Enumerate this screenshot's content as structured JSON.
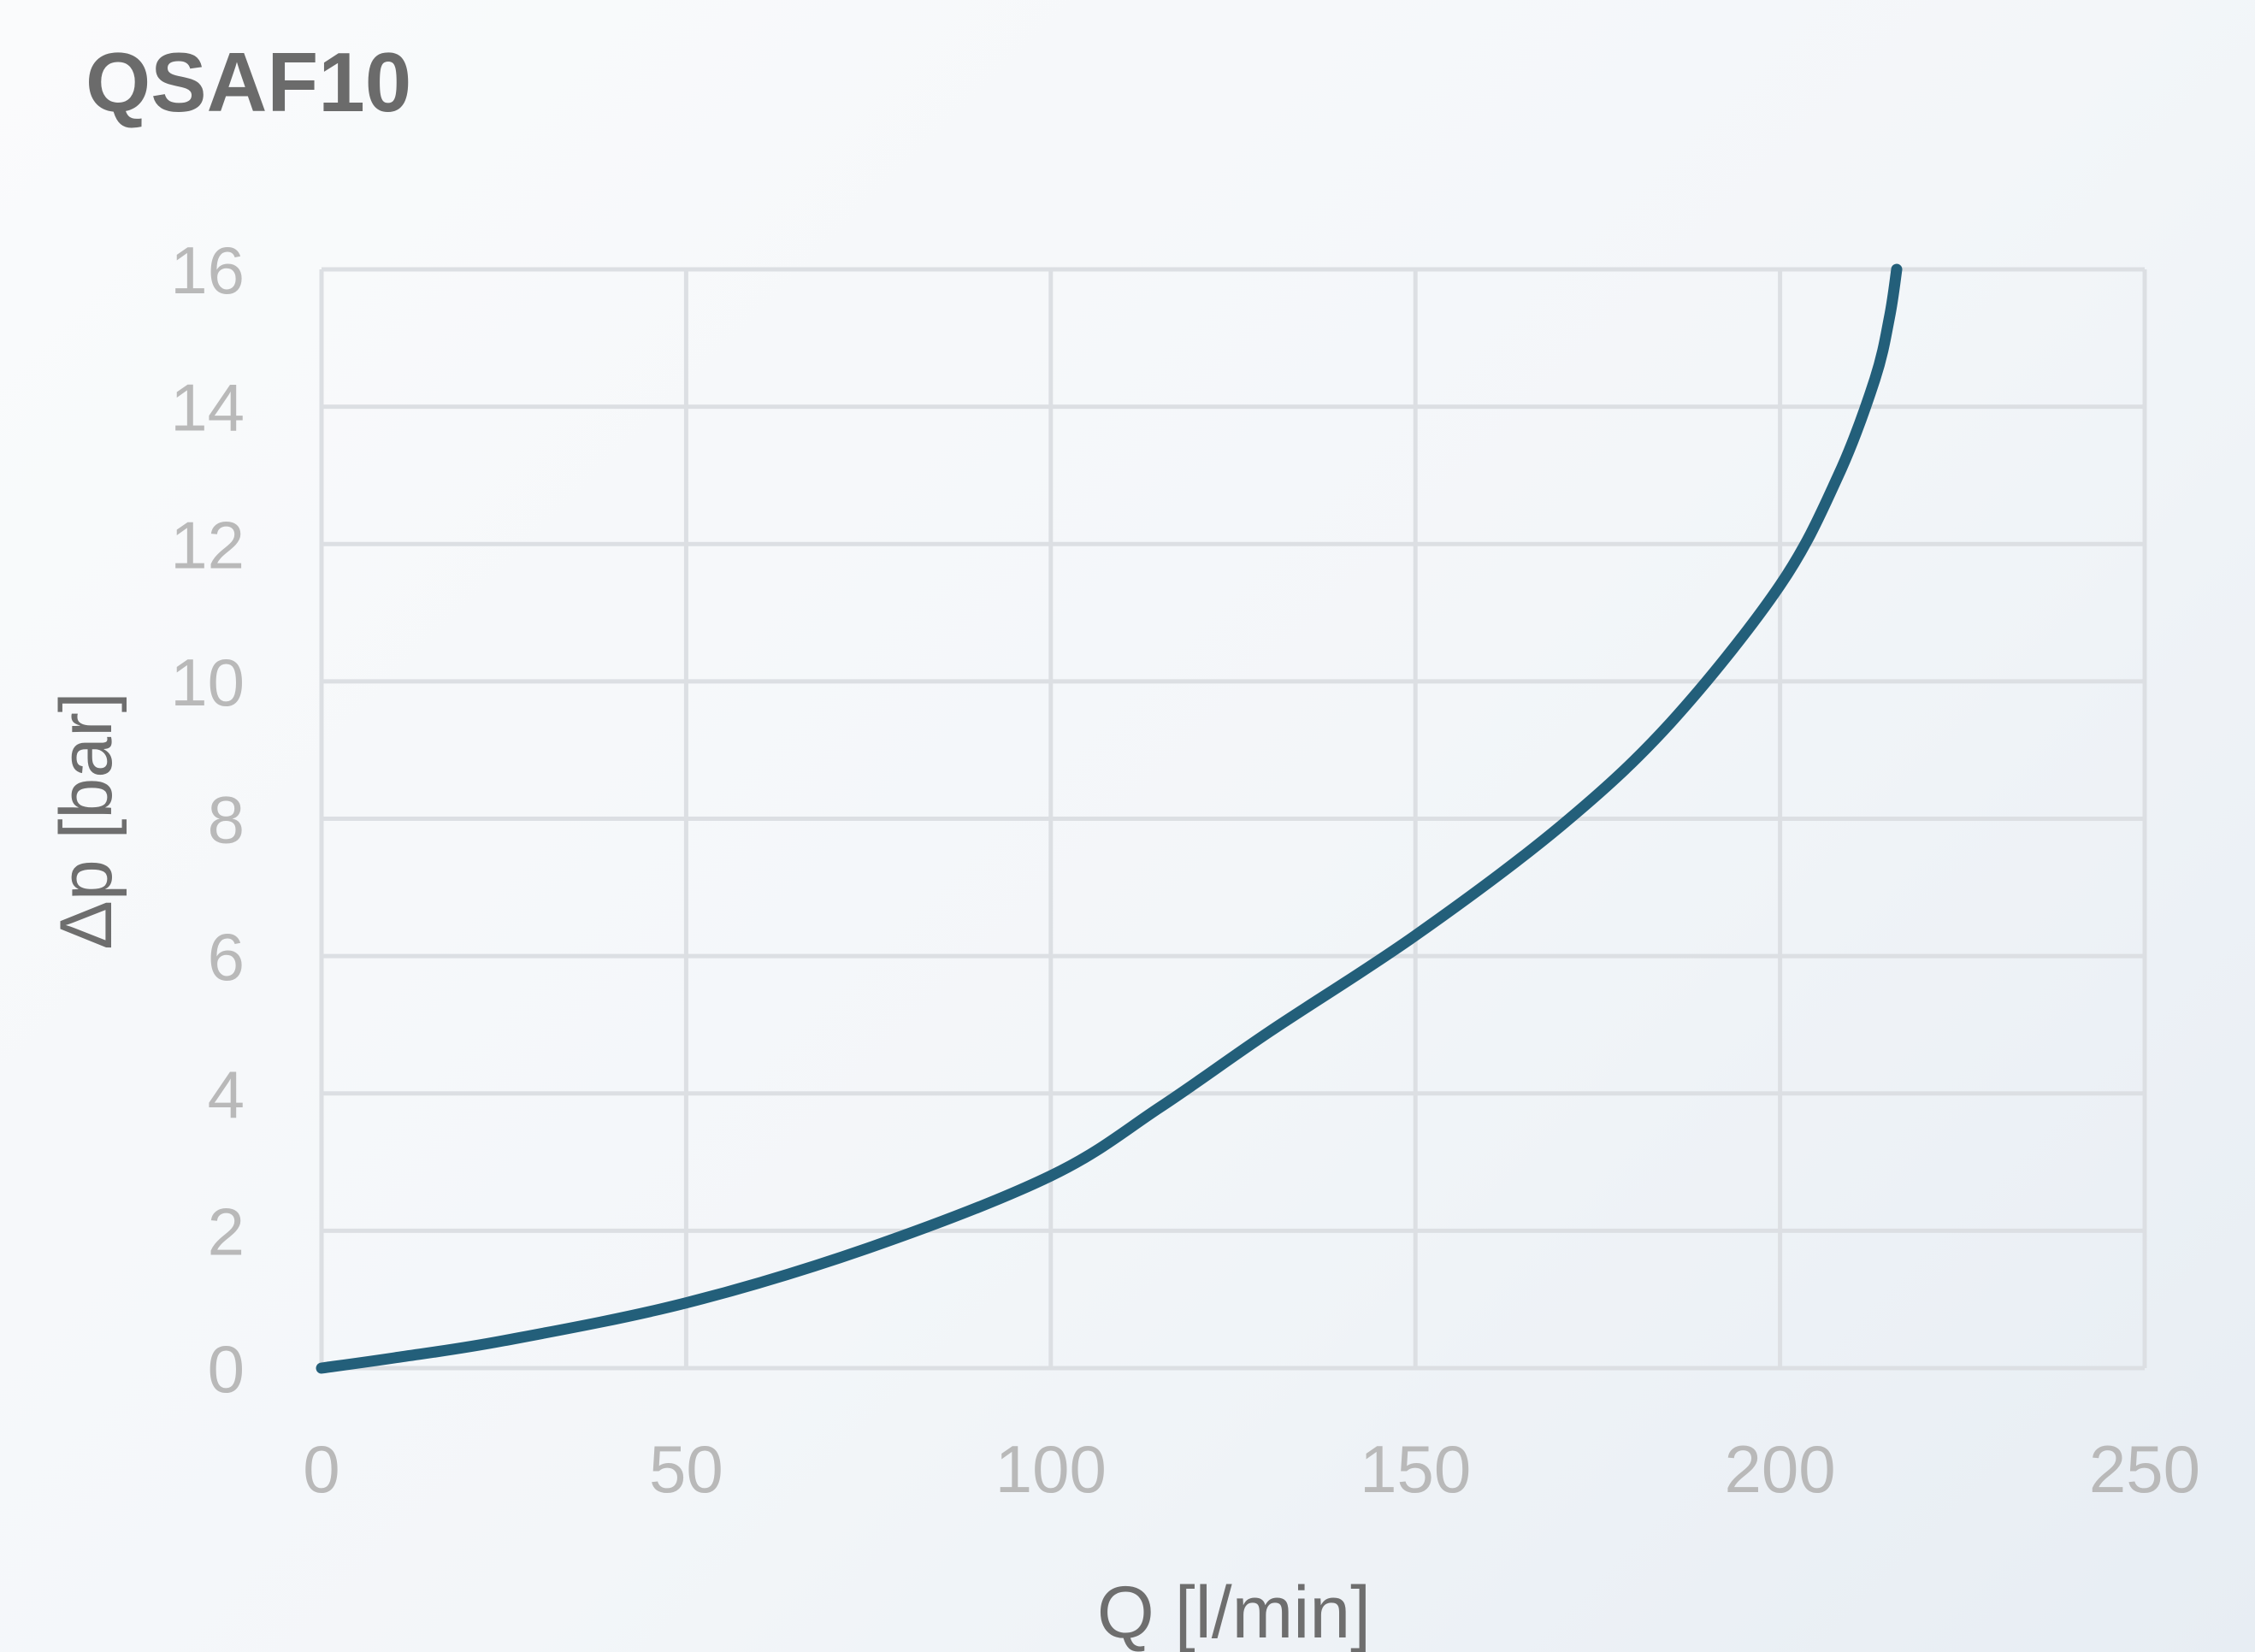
{
  "chart_data": {
    "type": "line",
    "title": "QSAF10",
    "xlabel": "Q [l/min]",
    "ylabel": "Δp  [bar]",
    "xlim": [
      0,
      250
    ],
    "ylim": [
      0,
      16
    ],
    "x_ticks": [
      "0",
      "50",
      "100",
      "150",
      "200",
      "250"
    ],
    "y_ticks": [
      "0",
      "2",
      "4",
      "6",
      "8",
      "10",
      "12",
      "14",
      "16"
    ],
    "grid": true,
    "legend": "none",
    "series": [
      {
        "color": "#235f7a",
        "x": [
          0,
          10,
          25,
          50,
          75,
          100,
          115,
          130,
          150,
          170,
          185,
          200,
          208,
          213,
          215,
          216
        ],
        "y": [
          0,
          0.15,
          0.4,
          0.95,
          1.75,
          2.8,
          3.8,
          4.9,
          6.3,
          7.9,
          9.4,
          11.4,
          13.0,
          14.4,
          15.3,
          16
        ]
      }
    ]
  }
}
